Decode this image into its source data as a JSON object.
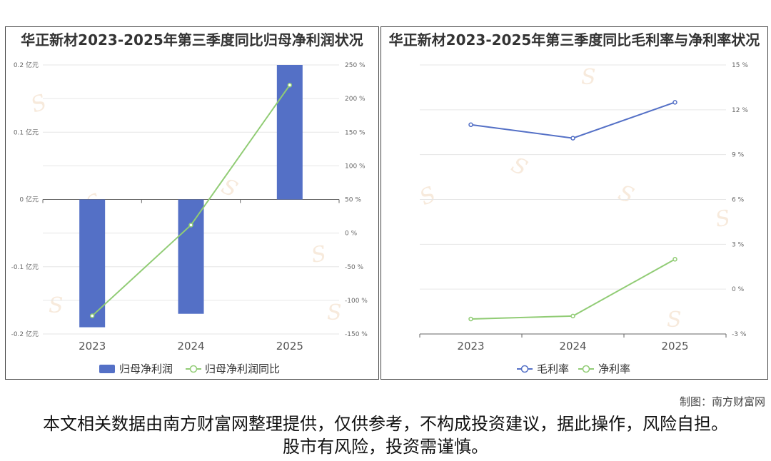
{
  "chart_data": [
    {
      "type": "bar",
      "title": "华正新材2023-2025年第三季度同比归母净利润状况",
      "categories": [
        "2023",
        "2024",
        "2025"
      ],
      "series": [
        {
          "name": "归母净利润",
          "type": "bar",
          "axis": "left",
          "color": "#5470c6",
          "values": [
            -0.19,
            -0.17,
            0.2
          ]
        },
        {
          "name": "归母净利润同比",
          "type": "line",
          "axis": "right",
          "color": "#91cc75",
          "values": [
            -123,
            12,
            220
          ]
        }
      ],
      "y_left": {
        "min": -0.2,
        "max": 0.2,
        "ticks": [
          -0.2,
          -0.1,
          0,
          0.1,
          0.2
        ],
        "tick_labels": [
          "-0.2 亿元",
          "-0.1 亿元",
          "0 亿元",
          "0.1 亿元",
          "0.2 亿元"
        ]
      },
      "y_right": {
        "min": -150,
        "max": 250,
        "ticks": [
          -150,
          -100,
          -50,
          0,
          50,
          100,
          150,
          200,
          250
        ],
        "tick_labels": [
          "-150 %",
          "-100 %",
          "-50 %",
          "0 %",
          "50 %",
          "100 %",
          "150 %",
          "200 %",
          "250 %"
        ]
      },
      "grid": true,
      "legend_position": "bottom-center"
    },
    {
      "type": "line",
      "title": "华正新材2023-2025年第三季度同比毛利率与净利率状况",
      "categories": [
        "2023",
        "2024",
        "2025"
      ],
      "series": [
        {
          "name": "毛利率",
          "color": "#5470c6",
          "values": [
            11.0,
            10.1,
            12.5
          ]
        },
        {
          "name": "净利率",
          "color": "#91cc75",
          "values": [
            -2.0,
            -1.8,
            2.0
          ]
        }
      ],
      "y": {
        "min": -3,
        "max": 15,
        "ticks": [
          -3,
          0,
          3,
          6,
          9,
          12,
          15
        ],
        "tick_labels": [
          "-3 %",
          "0 %",
          "3 %",
          "6 %",
          "9 %",
          "12 %",
          "15 %"
        ]
      },
      "grid": true,
      "legend_position": "bottom-center"
    }
  ],
  "footer": {
    "source": "制图：南方财富网",
    "disclaimer": "本文相关数据由南方财富网整理提供，仅供参考，不构成投资建议，据此操作，风险自担。股市有风险，投资需谨慎。"
  }
}
